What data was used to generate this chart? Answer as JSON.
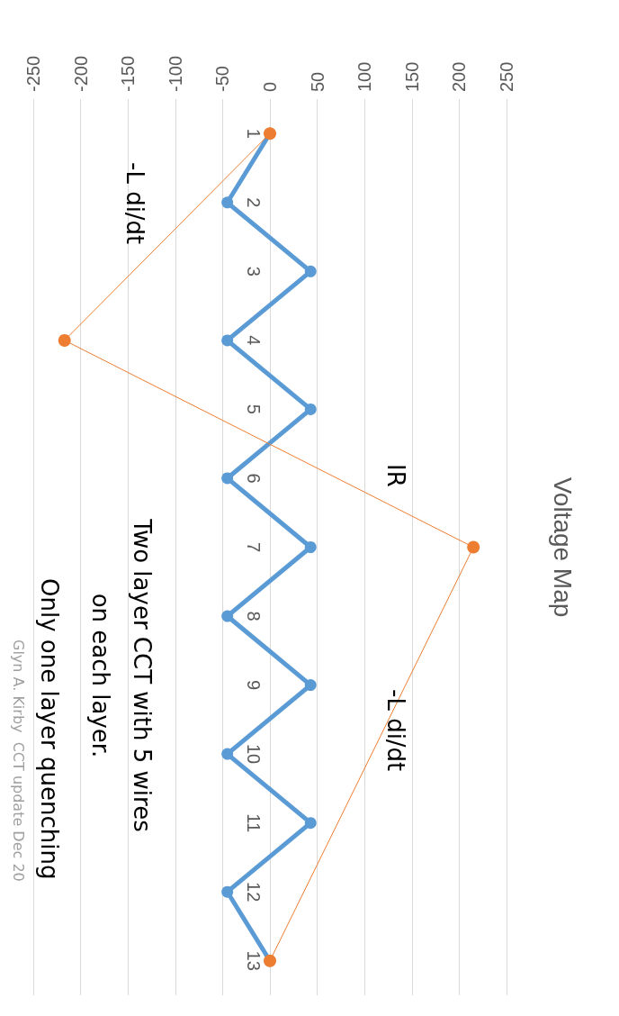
{
  "chart_data": {
    "type": "line",
    "title": "Voltage Map",
    "orientation": "horizontal",
    "categories": [
      "1",
      "2",
      "3",
      "4",
      "5",
      "6",
      "7",
      "8",
      "9",
      "10",
      "11",
      "12",
      "13"
    ],
    "series": [
      {
        "color": "#5b9bd5",
        "values": [
          0,
          -45,
          43,
          -45,
          43,
          -45,
          43,
          -45,
          43,
          -45,
          43,
          -45,
          0
        ]
      },
      {
        "color": "#ed7d31",
        "values": [
          0,
          null,
          null,
          -217,
          null,
          null,
          215,
          null,
          null,
          null,
          null,
          null,
          0
        ]
      }
    ],
    "xlim": [
      -250,
      250
    ],
    "xticks": [
      -250,
      -200,
      -150,
      -100,
      -50,
      0,
      50,
      100,
      150,
      200,
      250
    ],
    "grid": "x",
    "marker": "circle",
    "annotations": [
      "-L di/dt",
      "IR",
      "-L di/dt",
      "Two layer CCT with 5 wires\non each layer.",
      "Only one layer quenching",
      "Glyn A. Kirby  CCT update Dec 20"
    ]
  }
}
